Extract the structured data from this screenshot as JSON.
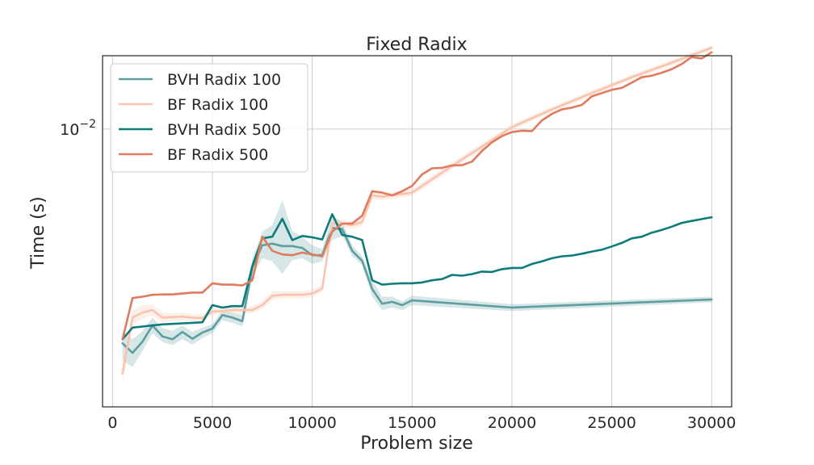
{
  "chart_data": {
    "type": "line",
    "title": "Fixed Radix",
    "xlabel": "Problem size",
    "ylabel": "Time (s)",
    "xlim": [
      -500,
      31000
    ],
    "ylim": [
      0.00245,
      0.0145
    ],
    "yscale": "log",
    "grid": true,
    "legend_position": "top-left",
    "x_ticks": [
      0,
      5000,
      10000,
      15000,
      20000,
      25000,
      30000
    ],
    "x_tick_labels": [
      "0",
      "5000",
      "10000",
      "15000",
      "20000",
      "25000",
      "30000"
    ],
    "y_ticks": [
      0.01
    ],
    "y_tick_labels": [
      {
        "base": "10",
        "exp": "−2"
      }
    ],
    "series": [
      {
        "name": "BVH Radix 100",
        "color": "#5f9ea0",
        "band": true,
        "x": [
          500,
          1000,
          1500,
          2000,
          2500,
          3000,
          3500,
          4000,
          4500,
          5000,
          5500,
          6000,
          6500,
          7000,
          7500,
          8000,
          8500,
          9000,
          9500,
          10000,
          10500,
          11000,
          11500,
          12000,
          12500,
          13000,
          13500,
          14000,
          14500,
          15000,
          20000,
          30000
        ],
        "y": [
          0.00338,
          0.00322,
          0.00341,
          0.0037,
          0.0035,
          0.00345,
          0.00358,
          0.00346,
          0.00357,
          0.00364,
          0.0039,
          0.00385,
          0.00378,
          0.00496,
          0.00555,
          0.0056,
          0.00553,
          0.00553,
          0.00548,
          0.00528,
          0.00528,
          0.00606,
          0.00603,
          0.0054,
          0.00513,
          0.00445,
          0.00413,
          0.00417,
          0.0041,
          0.0042,
          0.00405,
          0.00422
        ],
        "upper": [
          0.0036,
          0.00345,
          0.0036,
          0.00385,
          0.00365,
          0.0036,
          0.0037,
          0.00358,
          0.00366,
          0.00372,
          0.004,
          0.00395,
          0.0039,
          0.0052,
          0.00595,
          0.00615,
          0.00698,
          0.00598,
          0.0058,
          0.00555,
          0.00545,
          0.00645,
          0.00625,
          0.00555,
          0.00525,
          0.00465,
          0.00428,
          0.00428,
          0.00418,
          0.0043,
          0.00412,
          0.00428
        ],
        "lower": [
          0.0031,
          0.003,
          0.00325,
          0.00355,
          0.0034,
          0.00335,
          0.00345,
          0.00336,
          0.00347,
          0.00356,
          0.0038,
          0.00375,
          0.00368,
          0.00475,
          0.0052,
          0.00512,
          0.0048,
          0.00515,
          0.0052,
          0.00505,
          0.00512,
          0.0057,
          0.00582,
          0.00525,
          0.00502,
          0.00428,
          0.004,
          0.00405,
          0.004,
          0.0041,
          0.00398,
          0.00416
        ]
      },
      {
        "name": "BF Radix 100",
        "color": "#f9c4ad",
        "band": true,
        "x": [
          500,
          1000,
          1500,
          2000,
          2500,
          3000,
          3500,
          4000,
          4500,
          5000,
          5500,
          6000,
          6500,
          7000,
          7500,
          8000,
          8500,
          9000,
          9500,
          10000,
          10500,
          11000,
          11500,
          12000,
          12500,
          13000,
          13500,
          14000,
          14500,
          15000,
          17000,
          20000,
          22000,
          24000,
          26000,
          28000,
          30000
        ],
        "y": [
          0.0029,
          0.00385,
          0.00395,
          0.004,
          0.00385,
          0.00386,
          0.00387,
          0.00385,
          0.00384,
          0.00397,
          0.00398,
          0.004,
          0.004,
          0.004,
          0.0041,
          0.0043,
          0.00432,
          0.00432,
          0.00432,
          0.00435,
          0.00446,
          0.0062,
          0.0062,
          0.00615,
          0.00625,
          0.00715,
          0.0071,
          0.00715,
          0.0072,
          0.00725,
          0.0083,
          0.0101,
          0.01105,
          0.012,
          0.013,
          0.014,
          0.0151
        ],
        "upper": [
          0.0031,
          0.00398,
          0.0041,
          0.00412,
          0.00395,
          0.00394,
          0.00395,
          0.00392,
          0.00392,
          0.00404,
          0.00405,
          0.00407,
          0.00407,
          0.00408,
          0.00418,
          0.0044,
          0.0044,
          0.0044,
          0.0044,
          0.00444,
          0.00455,
          0.00632,
          0.00632,
          0.00627,
          0.00638,
          0.00728,
          0.00722,
          0.00728,
          0.00732,
          0.00738,
          0.00845,
          0.01025,
          0.0112,
          0.01218,
          0.01318,
          0.0142,
          0.0153
        ],
        "lower": [
          0.00275,
          0.00372,
          0.00382,
          0.00388,
          0.00376,
          0.00378,
          0.00379,
          0.00378,
          0.00376,
          0.0039,
          0.00391,
          0.00393,
          0.00393,
          0.00393,
          0.00402,
          0.0042,
          0.00424,
          0.00424,
          0.00424,
          0.00427,
          0.00438,
          0.00608,
          0.00608,
          0.00603,
          0.00612,
          0.00702,
          0.00698,
          0.00702,
          0.00708,
          0.00712,
          0.00815,
          0.00995,
          0.0109,
          0.01182,
          0.01282,
          0.0138,
          0.0149
        ]
      },
      {
        "name": "BVH Radix 500",
        "color": "#0e7c7b",
        "band": false,
        "x": [
          500,
          1000,
          1500,
          2000,
          2500,
          3000,
          3500,
          4000,
          4500,
          5000,
          5500,
          6000,
          6500,
          7000,
          7500,
          8000,
          8500,
          9000,
          9500,
          10000,
          10500,
          11000,
          11500,
          12000,
          12500,
          13000,
          13500,
          14000,
          14500,
          15000,
          15500,
          16000,
          16500,
          17000,
          17500,
          18000,
          18500,
          19000,
          19500,
          20000,
          20500,
          21000,
          21500,
          22000,
          22500,
          23000,
          23500,
          24000,
          24500,
          25000,
          25500,
          26000,
          26500,
          27000,
          27500,
          28000,
          28500,
          29000,
          29500,
          30000
        ],
        "y": [
          0.00345,
          0.00366,
          0.00368,
          0.0037,
          0.00372,
          0.00373,
          0.00374,
          0.00375,
          0.00376,
          0.0041,
          0.00405,
          0.00408,
          0.00408,
          0.005,
          0.00575,
          0.0058,
          0.00635,
          0.0057,
          0.00582,
          0.00578,
          0.00572,
          0.0065,
          0.00585,
          0.0058,
          0.0057,
          0.00465,
          0.00455,
          0.00457,
          0.00458,
          0.00458,
          0.0046,
          0.00465,
          0.00468,
          0.00478,
          0.00476,
          0.0048,
          0.00486,
          0.00485,
          0.00492,
          0.00495,
          0.00495,
          0.00505,
          0.00512,
          0.0052,
          0.00525,
          0.00527,
          0.00532,
          0.00538,
          0.00543,
          0.00552,
          0.00562,
          0.00575,
          0.0058,
          0.00592,
          0.006,
          0.0061,
          0.00622,
          0.00628,
          0.00634,
          0.0064
        ]
      },
      {
        "name": "BF Radix 500",
        "color": "#e07b5f",
        "band": false,
        "x": [
          500,
          1000,
          1500,
          2000,
          2500,
          3000,
          3500,
          4000,
          4500,
          5000,
          5500,
          6000,
          6500,
          7000,
          7500,
          8000,
          8500,
          9000,
          9500,
          10000,
          10500,
          11000,
          11500,
          12000,
          12500,
          13000,
          13500,
          14000,
          14500,
          15000,
          15500,
          16000,
          16500,
          17000,
          17500,
          18000,
          18500,
          19000,
          19500,
          20000,
          20500,
          21000,
          21500,
          22000,
          22500,
          23000,
          23500,
          24000,
          24500,
          25000,
          25500,
          26000,
          26500,
          27000,
          27500,
          28000,
          28500,
          29000,
          29500,
          30000
        ],
        "y": [
          0.00345,
          0.00425,
          0.00428,
          0.00432,
          0.00433,
          0.00433,
          0.00435,
          0.00437,
          0.00437,
          0.00458,
          0.00455,
          0.00455,
          0.00453,
          0.00465,
          0.0058,
          0.0054,
          0.0053,
          0.00528,
          0.00535,
          0.0053,
          0.00525,
          0.00595,
          0.0062,
          0.0062,
          0.00645,
          0.0073,
          0.00725,
          0.00715,
          0.0073,
          0.0075,
          0.00795,
          0.0082,
          0.00822,
          0.00832,
          0.00833,
          0.00848,
          0.00895,
          0.00935,
          0.00965,
          0.00985,
          0.00992,
          0.0099,
          0.01045,
          0.0108,
          0.01105,
          0.01115,
          0.0113,
          0.0118,
          0.012,
          0.0122,
          0.01232,
          0.01265,
          0.013,
          0.0131,
          0.0133,
          0.01355,
          0.0139,
          0.0144,
          0.0143,
          0.01475
        ]
      }
    ]
  }
}
